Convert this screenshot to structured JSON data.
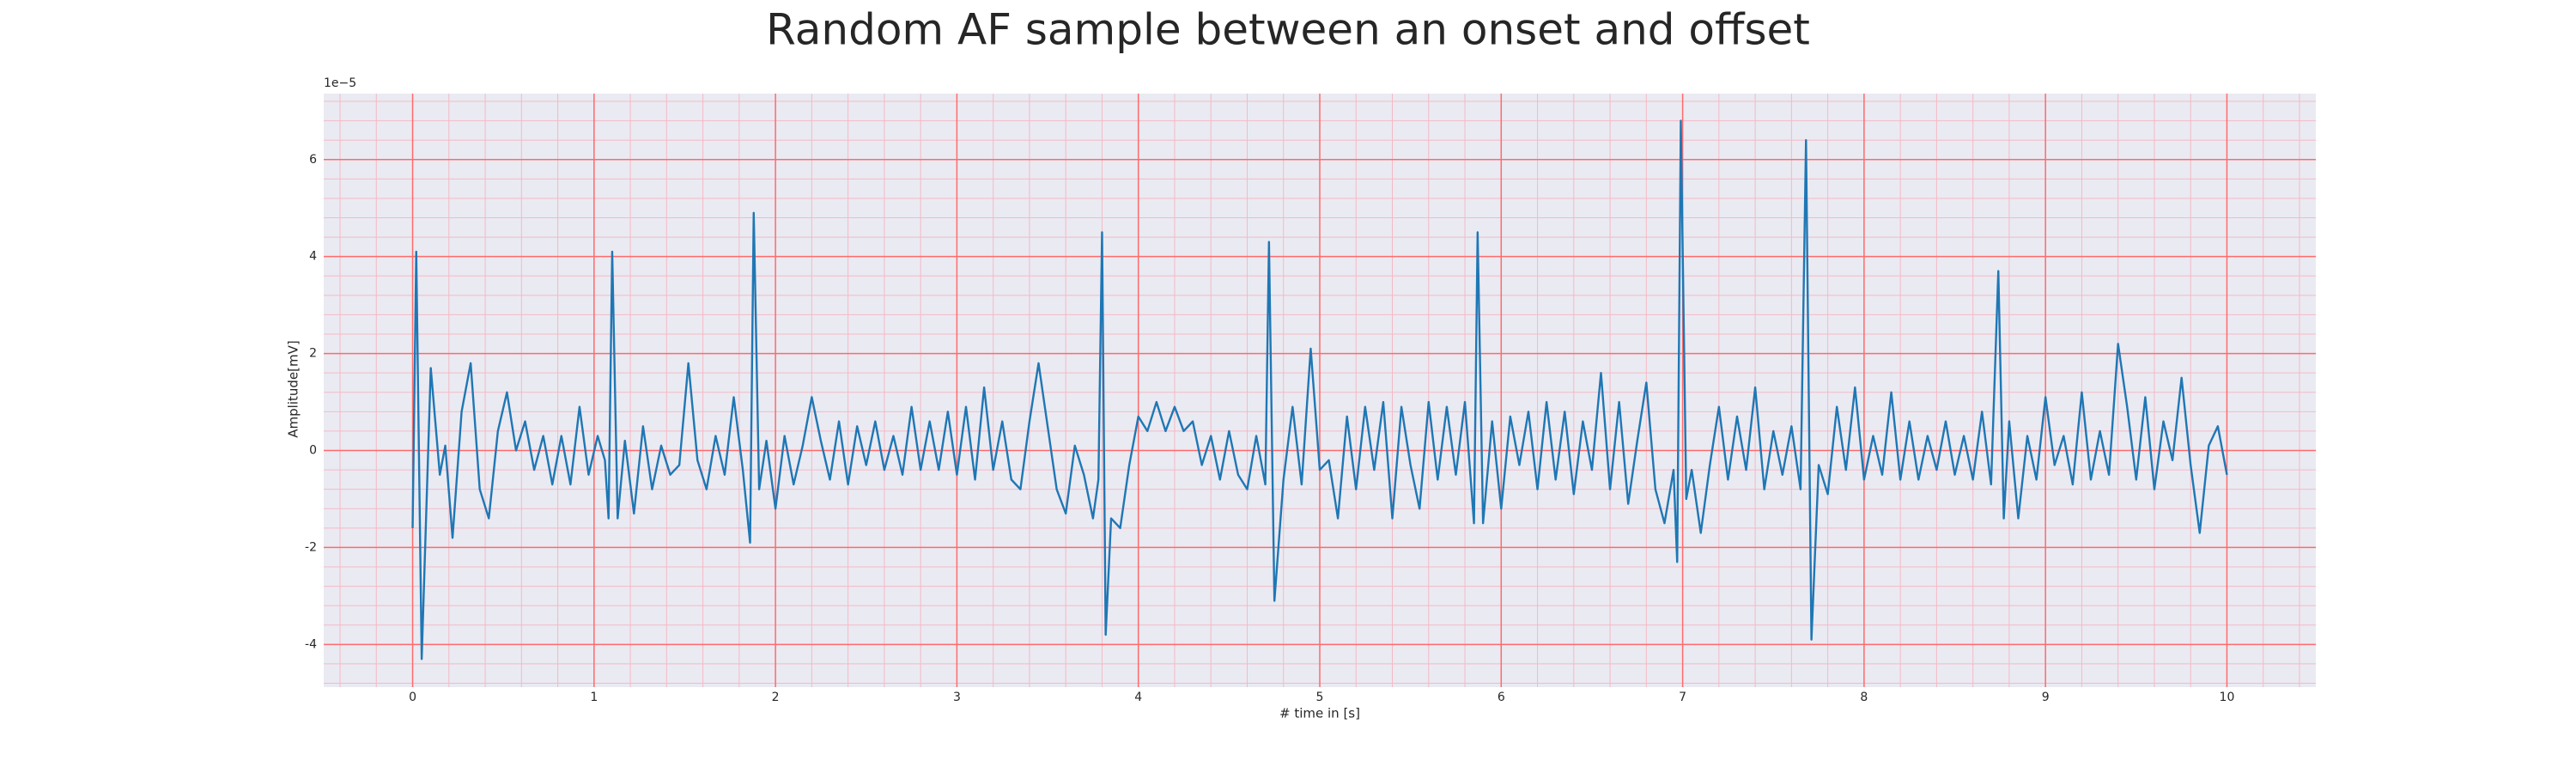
{
  "chart_data": {
    "type": "line",
    "title": "Random AF sample between an onset and offset",
    "xlabel": "# time in [s]",
    "ylabel": "Amplitude[mV]",
    "y_offset_label": "1e−5",
    "xlim": [
      -0.49,
      10.49
    ],
    "ylim": [
      -4.88,
      7.36
    ],
    "xticks": [
      0,
      1,
      2,
      3,
      4,
      5,
      6,
      7,
      8,
      9,
      10
    ],
    "yticks": [
      -4,
      -2,
      0,
      2,
      4,
      6
    ],
    "grid": true,
    "minor_grid": true,
    "grid_color": "#ff6b6b",
    "minor_grid_color": "#f5b9c4",
    "background": "#eaeaf2",
    "x": [
      0,
      0.02,
      0.05,
      0.1,
      0.15,
      0.18,
      0.22,
      0.27,
      0.32,
      0.37,
      0.42,
      0.47,
      0.52,
      0.57,
      0.62,
      0.67,
      0.72,
      0.77,
      0.82,
      0.87,
      0.92,
      0.97,
      1.02,
      1.06,
      1.08,
      1.1,
      1.13,
      1.17,
      1.22,
      1.27,
      1.32,
      1.37,
      1.42,
      1.47,
      1.52,
      1.57,
      1.62,
      1.67,
      1.72,
      1.77,
      1.82,
      1.86,
      1.88,
      1.91,
      1.95,
      2.0,
      2.05,
      2.1,
      2.15,
      2.2,
      2.25,
      2.3,
      2.35,
      2.4,
      2.45,
      2.5,
      2.55,
      2.6,
      2.65,
      2.7,
      2.75,
      2.8,
      2.85,
      2.9,
      2.95,
      3.0,
      3.05,
      3.1,
      3.15,
      3.2,
      3.25,
      3.3,
      3.35,
      3.4,
      3.45,
      3.5,
      3.55,
      3.6,
      3.65,
      3.7,
      3.75,
      3.78,
      3.8,
      3.82,
      3.85,
      3.9,
      3.95,
      4.0,
      4.05,
      4.1,
      4.15,
      4.2,
      4.25,
      4.3,
      4.35,
      4.4,
      4.45,
      4.5,
      4.55,
      4.6,
      4.65,
      4.7,
      4.72,
      4.75,
      4.8,
      4.85,
      4.9,
      4.95,
      5.0,
      5.05,
      5.1,
      5.15,
      5.2,
      5.25,
      5.3,
      5.35,
      5.4,
      5.45,
      5.5,
      5.55,
      5.6,
      5.65,
      5.7,
      5.75,
      5.8,
      5.85,
      5.87,
      5.9,
      5.95,
      6.0,
      6.05,
      6.1,
      6.15,
      6.2,
      6.25,
      6.3,
      6.35,
      6.4,
      6.45,
      6.5,
      6.55,
      6.6,
      6.65,
      6.7,
      6.75,
      6.8,
      6.85,
      6.9,
      6.95,
      6.97,
      6.99,
      7.02,
      7.05,
      7.1,
      7.15,
      7.2,
      7.25,
      7.3,
      7.35,
      7.4,
      7.45,
      7.5,
      7.55,
      7.6,
      7.65,
      7.68,
      7.71,
      7.75,
      7.8,
      7.85,
      7.9,
      7.95,
      8.0,
      8.05,
      8.1,
      8.15,
      8.2,
      8.25,
      8.3,
      8.35,
      8.4,
      8.45,
      8.5,
      8.55,
      8.6,
      8.65,
      8.7,
      8.74,
      8.77,
      8.8,
      8.85,
      8.9,
      8.95,
      9.0,
      9.05,
      9.1,
      9.15,
      9.2,
      9.25,
      9.3,
      9.35,
      9.4,
      9.45,
      9.5,
      9.55,
      9.6,
      9.65,
      9.7,
      9.75,
      9.8,
      9.85,
      9.9,
      9.95,
      10.0
    ],
    "series": [
      {
        "color": "#1f77b4",
        "values": [
          -1.6,
          4.1,
          -4.3,
          1.7,
          -0.5,
          0.1,
          -1.8,
          0.8,
          1.8,
          -0.8,
          -1.4,
          0.4,
          1.2,
          0.0,
          0.6,
          -0.4,
          0.3,
          -0.7,
          0.3,
          -0.7,
          0.9,
          -0.5,
          0.3,
          -0.2,
          -1.4,
          4.1,
          -1.4,
          0.2,
          -1.3,
          0.5,
          -0.8,
          0.1,
          -0.5,
          -0.3,
          1.8,
          -0.2,
          -0.8,
          0.3,
          -0.5,
          1.1,
          -0.4,
          -1.9,
          4.9,
          -0.8,
          0.2,
          -1.2,
          0.3,
          -0.7,
          0.1,
          1.1,
          0.2,
          -0.6,
          0.6,
          -0.7,
          0.5,
          -0.3,
          0.6,
          -0.4,
          0.3,
          -0.5,
          0.9,
          -0.4,
          0.6,
          -0.4,
          0.8,
          -0.5,
          0.9,
          -0.6,
          1.3,
          -0.4,
          0.6,
          -0.6,
          -0.8,
          0.6,
          1.8,
          0.5,
          -0.8,
          -1.3,
          0.1,
          -0.5,
          -1.4,
          -0.6,
          4.5,
          -3.8,
          -1.4,
          -1.6,
          -0.3,
          0.7,
          0.4,
          1.0,
          0.4,
          0.9,
          0.4,
          0.6,
          -0.3,
          0.3,
          -0.6,
          0.4,
          -0.5,
          -0.8,
          0.3,
          -0.7,
          4.3,
          -3.1,
          -0.6,
          0.9,
          -0.7,
          2.1,
          -0.4,
          -0.2,
          -1.4,
          0.7,
          -0.8,
          0.9,
          -0.4,
          1.0,
          -1.4,
          0.9,
          -0.3,
          -1.2,
          1.0,
          -0.6,
          0.9,
          -0.5,
          1.0,
          -1.5,
          4.5,
          -1.5,
          0.6,
          -1.2,
          0.7,
          -0.3,
          0.8,
          -0.8,
          1.0,
          -0.6,
          0.8,
          -0.9,
          0.6,
          -0.4,
          1.6,
          -0.8,
          1.0,
          -1.1,
          0.2,
          1.4,
          -0.8,
          -1.5,
          -0.4,
          -2.3,
          6.8,
          -1.0,
          -0.4,
          -1.7,
          -0.3,
          0.9,
          -0.6,
          0.7,
          -0.4,
          1.3,
          -0.8,
          0.4,
          -0.5,
          0.5,
          -0.8,
          6.4,
          -3.9,
          -0.3,
          -0.9,
          0.9,
          -0.4,
          1.3,
          -0.6,
          0.3,
          -0.5,
          1.2,
          -0.6,
          0.6,
          -0.6,
          0.3,
          -0.4,
          0.6,
          -0.5,
          0.3,
          -0.6,
          0.8,
          -0.7,
          3.7,
          -1.4,
          0.6,
          -1.4,
          0.3,
          -0.6,
          1.1,
          -0.3,
          0.3,
          -0.7,
          1.2,
          -0.6,
          0.4,
          -0.5,
          2.2,
          0.9,
          -0.6,
          1.1,
          -0.8,
          0.6,
          -0.2,
          1.5,
          -0.3,
          -1.7,
          0.1,
          0.5,
          -0.5
        ]
      }
    ]
  }
}
